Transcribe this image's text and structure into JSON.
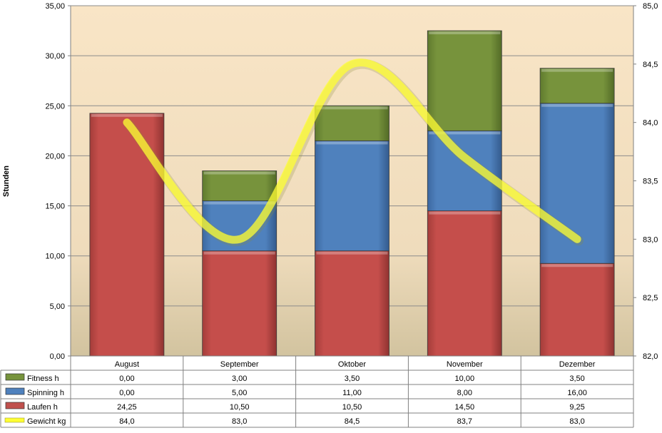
{
  "chart_data": {
    "type": "bar",
    "stacked": true,
    "categories": [
      "August",
      "September",
      "Oktober",
      "November",
      "Dezember"
    ],
    "series": [
      {
        "name": "Laufen h",
        "values": [
          24.25,
          10.5,
          10.5,
          14.5,
          9.25
        ],
        "display": [
          "24,25",
          "10,50",
          "10,50",
          "14,50",
          "9,25"
        ],
        "color": "#c0504d",
        "kind": "bar"
      },
      {
        "name": "Spinning h",
        "values": [
          0.0,
          5.0,
          11.0,
          8.0,
          16.0
        ],
        "display": [
          "0,00",
          "5,00",
          "11,00",
          "8,00",
          "16,00"
        ],
        "color": "#4f81bd",
        "kind": "bar"
      },
      {
        "name": "Fitness h",
        "values": [
          0.0,
          3.0,
          3.5,
          10.0,
          3.5
        ],
        "display": [
          "0,00",
          "3,00",
          "3,50",
          "10,00",
          "3,50"
        ],
        "color": "#77933c",
        "kind": "bar"
      },
      {
        "name": "Gewicht kg",
        "values": [
          84.0,
          83.0,
          84.5,
          83.7,
          83.0
        ],
        "display": [
          "84,0",
          "83,0",
          "84,5",
          "83,7",
          "83,0"
        ],
        "color": "#ffff33",
        "kind": "line",
        "axis": "secondary"
      }
    ],
    "table_order": [
      "Fitness h",
      "Spinning h",
      "Laufen h",
      "Gewicht kg"
    ],
    "ylabel": "Stunden",
    "ylim": [
      0,
      35
    ],
    "y_ticks": [
      "0,00",
      "5,00",
      "10,00",
      "15,00",
      "20,00",
      "25,00",
      "30,00",
      "35,00"
    ],
    "y2lim": [
      82.0,
      85.0
    ],
    "y2_ticks": [
      "82,0",
      "82,5",
      "83,0",
      "83,5",
      "84,0",
      "84,5",
      "85,0"
    ],
    "grid": true,
    "legend": "data-table"
  }
}
